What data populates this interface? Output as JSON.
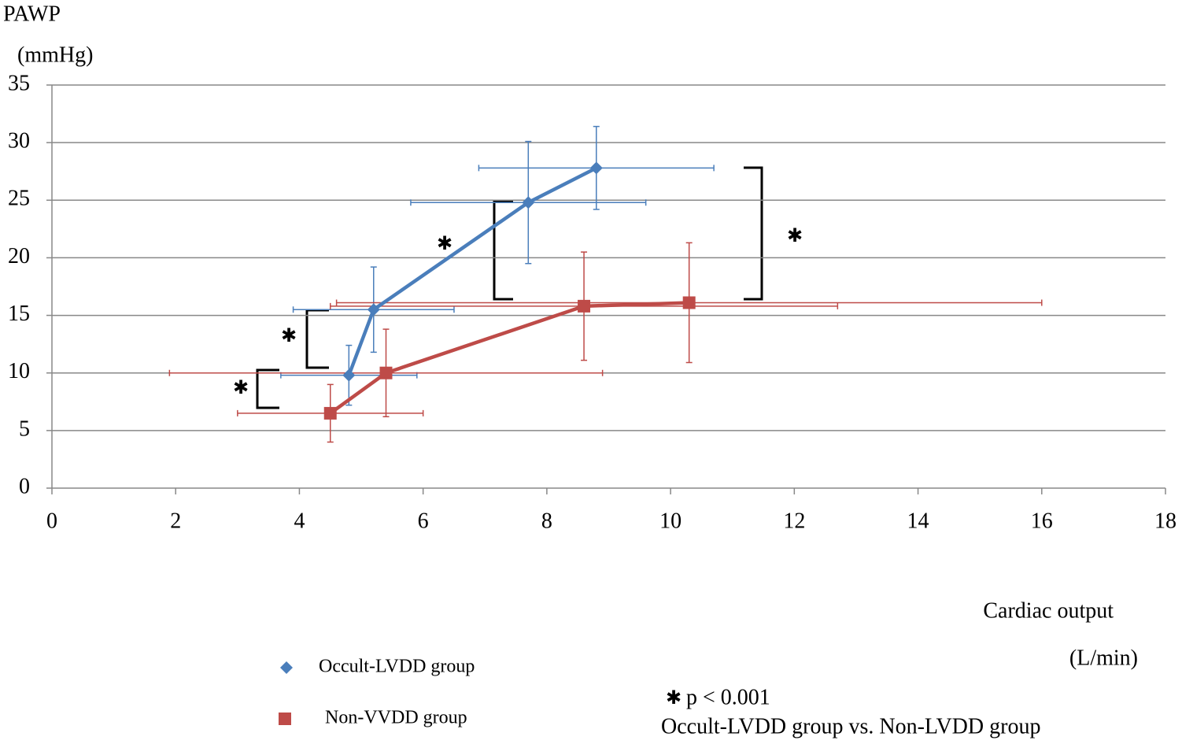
{
  "chart_data": {
    "type": "line",
    "y_label": [
      "PAWP",
      "(mmHg)"
    ],
    "x_label": [
      "Cardiac output",
      "(L/min)"
    ],
    "xlim": [
      0,
      18
    ],
    "xticks": [
      0,
      2,
      4,
      6,
      8,
      10,
      12,
      14,
      16,
      18
    ],
    "ylim": [
      0,
      35
    ],
    "yticks": [
      0,
      5,
      10,
      15,
      20,
      25,
      30,
      35
    ],
    "grid": true,
    "series": [
      {
        "name": "Occult-LVDD group",
        "color": "#4a7ebb",
        "marker": "diamond",
        "x": [
          4.8,
          5.2,
          7.7,
          8.8
        ],
        "values": [
          9.8,
          15.5,
          24.8,
          27.8
        ],
        "xerr": [
          1.1,
          1.3,
          1.9,
          1.9
        ],
        "yerr": [
          2.6,
          3.7,
          5.3,
          3.6
        ]
      },
      {
        "name": "Non-VVDD group",
        "color": "#be4b48",
        "marker": "square",
        "x": [
          4.5,
          5.4,
          8.6,
          10.3
        ],
        "values": [
          6.5,
          10.0,
          15.8,
          16.1
        ],
        "xerr": [
          1.5,
          3.5,
          4.1,
          5.7
        ],
        "yerr": [
          2.5,
          3.8,
          4.7,
          5.2
        ]
      }
    ],
    "significance_marker": "✱",
    "note": [
      "p < 0.001",
      "Occult-LVDD group vs. Non-LVDD group"
    ]
  }
}
